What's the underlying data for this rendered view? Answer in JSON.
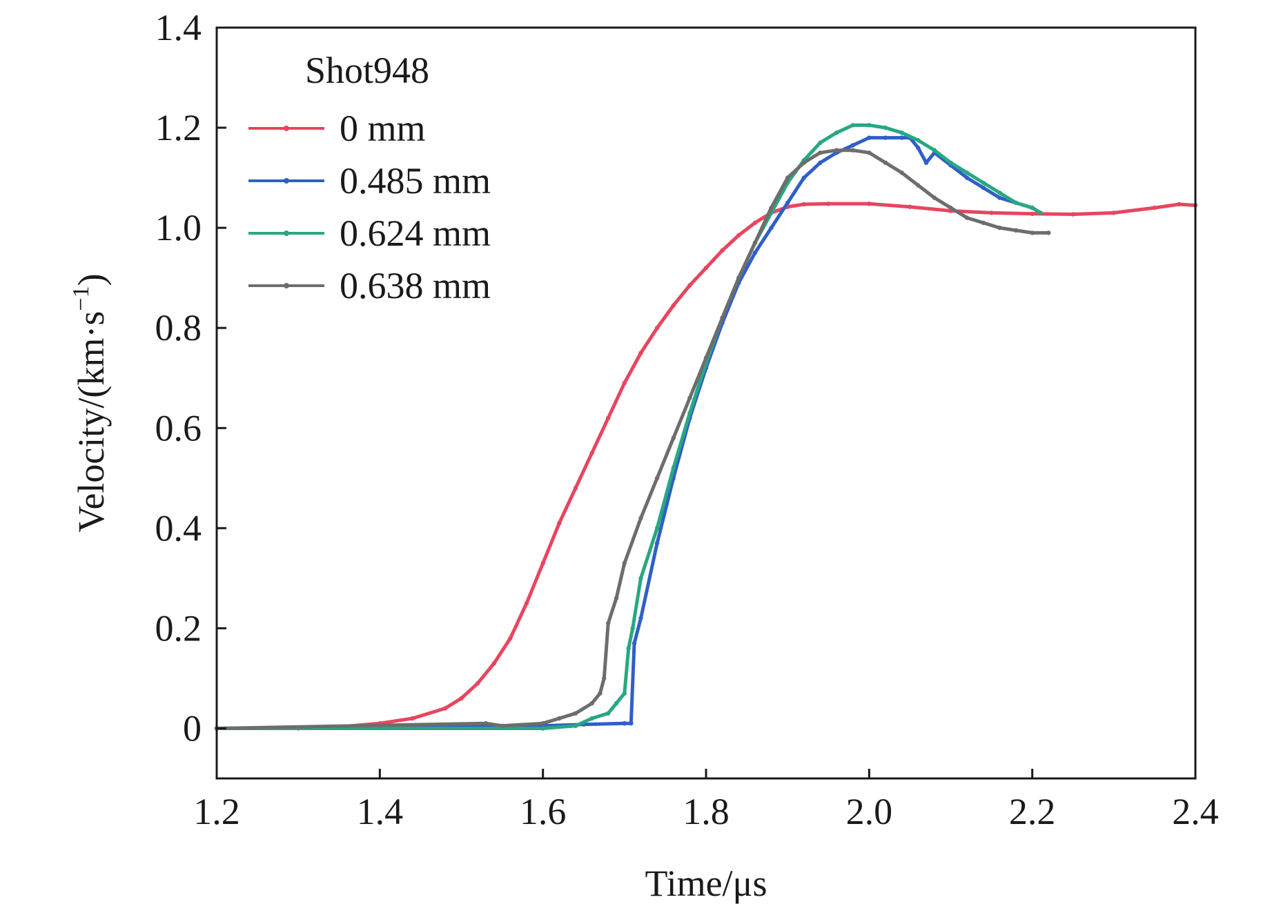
{
  "chart_data": {
    "type": "line",
    "title": "",
    "xlabel": "Time/μs",
    "ylabel": "Velocity/(km·s",
    "ylabel_unit_exponent": "−1",
    "ylabel_close": ")",
    "xlim": [
      1.2,
      2.4
    ],
    "ylim": [
      -0.1,
      1.4
    ],
    "x_ticks": [
      1.2,
      1.4,
      1.6,
      1.8,
      2.0,
      2.2,
      2.4
    ],
    "x_tick_labels": [
      "1.2",
      "1.4",
      "1.6",
      "1.8",
      "2.0",
      "2.2",
      "2.4"
    ],
    "y_ticks": [
      0,
      0.2,
      0.4,
      0.6,
      0.8,
      1.0,
      1.2,
      1.4
    ],
    "y_tick_labels": [
      "0",
      "0.2",
      "0.4",
      "0.6",
      "0.8",
      "1.0",
      "1.2",
      "1.4"
    ],
    "grid": false,
    "legend_title": "Shot948",
    "legend_position": "top-left",
    "series": [
      {
        "name": "0 mm",
        "color": "#e8455f",
        "x": [
          1.2,
          1.3,
          1.35,
          1.4,
          1.44,
          1.48,
          1.5,
          1.52,
          1.54,
          1.56,
          1.58,
          1.6,
          1.62,
          1.64,
          1.66,
          1.68,
          1.7,
          1.72,
          1.74,
          1.76,
          1.78,
          1.8,
          1.82,
          1.84,
          1.86,
          1.88,
          1.9,
          1.92,
          1.95,
          2.0,
          2.05,
          2.1,
          2.15,
          2.2,
          2.25,
          2.3,
          2.35,
          2.38,
          2.4
        ],
        "values": [
          0,
          0,
          0.003,
          0.01,
          0.02,
          0.04,
          0.06,
          0.09,
          0.13,
          0.18,
          0.25,
          0.33,
          0.41,
          0.48,
          0.55,
          0.62,
          0.69,
          0.75,
          0.8,
          0.845,
          0.885,
          0.92,
          0.955,
          0.985,
          1.01,
          1.03,
          1.042,
          1.047,
          1.048,
          1.048,
          1.042,
          1.034,
          1.03,
          1.028,
          1.027,
          1.03,
          1.04,
          1.047,
          1.045
        ]
      },
      {
        "name": "0.485 mm",
        "color": "#2f5fc8",
        "x": [
          1.2,
          1.6,
          1.65,
          1.7,
          1.708,
          1.712,
          1.72,
          1.74,
          1.76,
          1.78,
          1.8,
          1.82,
          1.84,
          1.86,
          1.88,
          1.9,
          1.92,
          1.94,
          1.96,
          1.98,
          2.0,
          2.02,
          2.04,
          2.05,
          2.06,
          2.07,
          2.08,
          2.1,
          2.12,
          2.14,
          2.16,
          2.18,
          2.2,
          2.21
        ],
        "values": [
          0,
          0.005,
          0.008,
          0.01,
          0.01,
          0.17,
          0.22,
          0.37,
          0.5,
          0.62,
          0.72,
          0.81,
          0.89,
          0.95,
          1.0,
          1.05,
          1.1,
          1.13,
          1.15,
          1.165,
          1.18,
          1.18,
          1.18,
          1.18,
          1.16,
          1.13,
          1.15,
          1.125,
          1.1,
          1.08,
          1.06,
          1.05,
          1.04,
          1.03
        ]
      },
      {
        "name": "0.624 mm",
        "color": "#27a882",
        "x": [
          1.2,
          1.6,
          1.64,
          1.66,
          1.68,
          1.69,
          1.7,
          1.705,
          1.71,
          1.72,
          1.74,
          1.76,
          1.78,
          1.8,
          1.82,
          1.84,
          1.86,
          1.88,
          1.9,
          1.92,
          1.94,
          1.96,
          1.98,
          2.0,
          2.02,
          2.04,
          2.06,
          2.08,
          2.1,
          2.12,
          2.14,
          2.16,
          2.18,
          2.2,
          2.21
        ],
        "values": [
          0,
          0,
          0.005,
          0.02,
          0.03,
          0.05,
          0.07,
          0.16,
          0.2,
          0.3,
          0.4,
          0.52,
          0.63,
          0.73,
          0.82,
          0.9,
          0.97,
          1.03,
          1.09,
          1.135,
          1.17,
          1.19,
          1.205,
          1.205,
          1.2,
          1.19,
          1.175,
          1.155,
          1.13,
          1.11,
          1.09,
          1.07,
          1.05,
          1.04,
          1.03
        ]
      },
      {
        "name": "0.638 mm",
        "color": "#6d6d6d",
        "x": [
          1.2,
          1.53,
          1.55,
          1.6,
          1.62,
          1.64,
          1.66,
          1.67,
          1.675,
          1.68,
          1.69,
          1.7,
          1.72,
          1.74,
          1.76,
          1.78,
          1.8,
          1.82,
          1.84,
          1.86,
          1.88,
          1.9,
          1.92,
          1.94,
          1.96,
          1.98,
          2.0,
          2.02,
          2.04,
          2.06,
          2.08,
          2.1,
          2.12,
          2.14,
          2.16,
          2.18,
          2.2,
          2.22
        ],
        "values": [
          0,
          0.01,
          0.005,
          0.01,
          0.02,
          0.03,
          0.05,
          0.07,
          0.1,
          0.21,
          0.26,
          0.33,
          0.42,
          0.5,
          0.58,
          0.66,
          0.74,
          0.82,
          0.9,
          0.97,
          1.04,
          1.1,
          1.13,
          1.15,
          1.155,
          1.155,
          1.15,
          1.13,
          1.11,
          1.085,
          1.06,
          1.04,
          1.02,
          1.01,
          1.0,
          0.995,
          0.99,
          0.99
        ]
      }
    ]
  }
}
